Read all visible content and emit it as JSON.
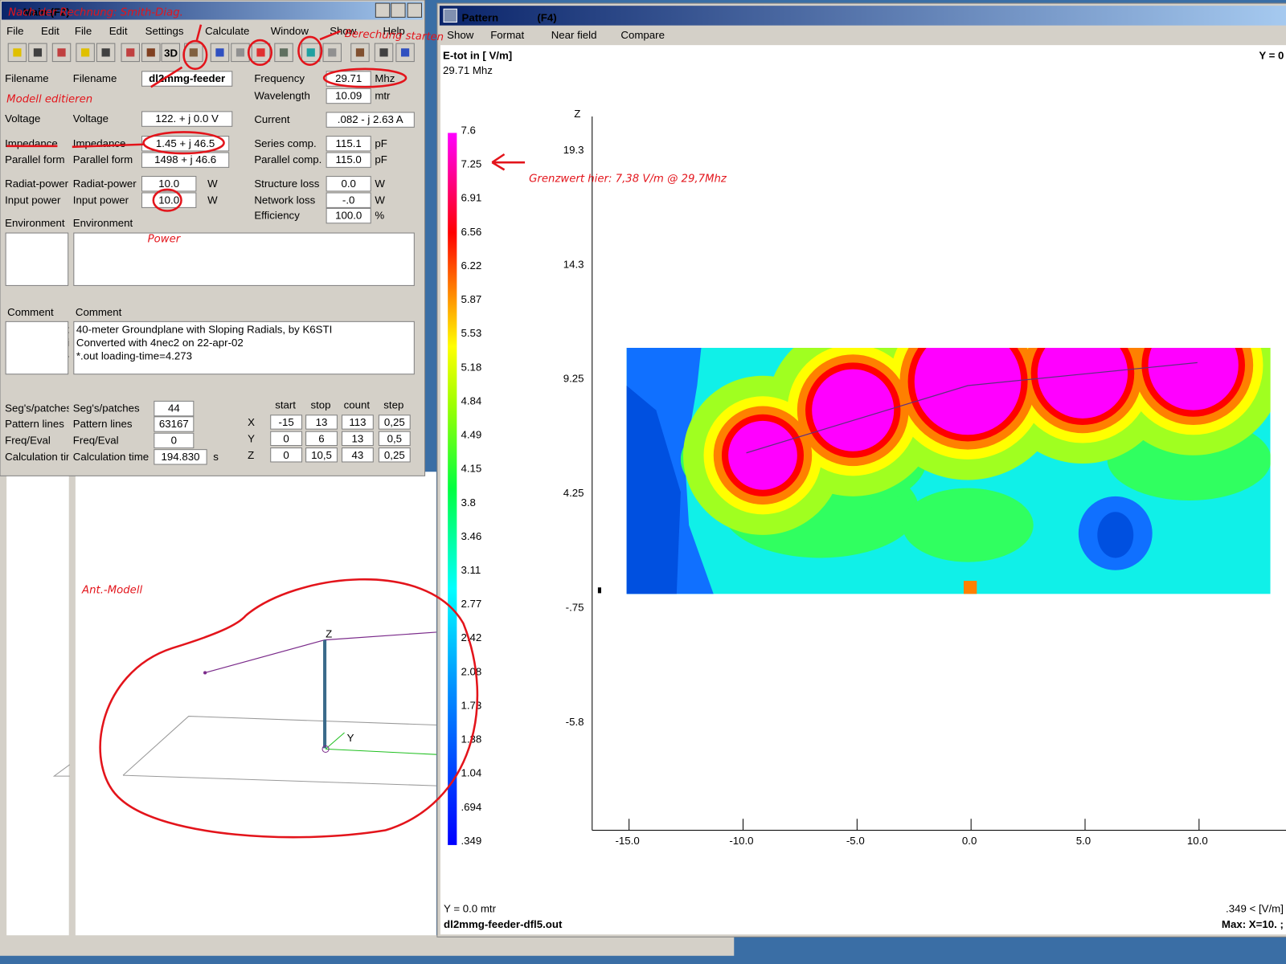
{
  "main_window": {
    "title": "Main (F2)",
    "menu": [
      "File",
      "Edit",
      "File",
      "Edit",
      "Settings",
      "Calculate",
      "Window",
      "Show",
      "Help"
    ],
    "toolbar_3d": "3D",
    "left_fields": [
      {
        "label": "Filename",
        "value": "dl2mmg-feeder"
      },
      {
        "label": "Voltage",
        "value": "122. + j 0.0 V"
      },
      {
        "label": "Impedance",
        "value": "1.45 + j 46.5"
      },
      {
        "label": "Parallel form",
        "value": "1498 + j 46.6"
      },
      {
        "label": "Radiat-power",
        "value": "10.0",
        "unit": "W"
      },
      {
        "label": "Input power",
        "value": "10.0",
        "unit": "W"
      }
    ],
    "right_fields": [
      {
        "label": "Frequency",
        "value": "29.71",
        "unit": "Mhz"
      },
      {
        "label": "Wavelength",
        "value": "10.09",
        "unit": "mtr"
      },
      {
        "label": "Current",
        "value": ".082 - j 2.63 A"
      },
      {
        "label": "Series comp.",
        "value": "115.1",
        "unit": "pF"
      },
      {
        "label": "Parallel comp.",
        "value": "115.0",
        "unit": "pF"
      },
      {
        "label": "Structure loss",
        "value": "0.0",
        "unit": "W"
      },
      {
        "label": "Network loss",
        "value": "-.0",
        "unit": "W"
      },
      {
        "label": "Efficiency",
        "value": "100.0",
        "unit": "%"
      }
    ],
    "environment_label": "Environment",
    "comment_label": "Comment",
    "comment_lines": [
      "40-meter Groundplane with Sloping Radials, by K6STI",
      "Converted with 4nec2 on 22-apr-02",
      "*.out loading-time=4.273"
    ],
    "bottom_fields": [
      {
        "label": "Seg's/patches",
        "value": "44"
      },
      {
        "label": "Pattern lines",
        "value": "63167"
      },
      {
        "label": "Freq/Eval",
        "value": "0"
      },
      {
        "label": "Calculation time",
        "value": "194.830",
        "unit": "s"
      }
    ],
    "grid_headers": [
      "start",
      "stop",
      "count",
      "step"
    ],
    "grid_rows": [
      {
        "axis": "X",
        "cells": [
          "-15",
          "13",
          "113",
          "0,25"
        ]
      },
      {
        "axis": "Y",
        "cells": [
          "0",
          "6",
          "13",
          "0,5"
        ]
      },
      {
        "axis": "Z",
        "cells": [
          "0",
          "10,5",
          "43",
          "0,25"
        ]
      }
    ]
  },
  "model_view": {
    "z_label": "Z",
    "y_label": "Y"
  },
  "pattern_window": {
    "title": "Pattern",
    "hotkey": "(F4)",
    "menu": [
      "Show",
      "Format",
      "Near field",
      "Compare"
    ],
    "quantity": "E-tot in [ V/m]",
    "frequency": "29.71 Mhz",
    "plane_short": "Y = 0",
    "colorbar_labels": [
      "7.6",
      "7.25",
      "6.91",
      "6.56",
      "6.22",
      "5.87",
      "5.53",
      "5.18",
      "4.84",
      "4.49",
      "4.15",
      "3.8",
      "3.46",
      "3.11",
      "2.77",
      "2.42",
      "2.08",
      "1.73",
      "1.38",
      "1.04",
      ".694",
      ".349"
    ],
    "z_axis_label": "Z",
    "z_ticks": [
      "19.3",
      "14.3",
      "9.25",
      "4.25",
      "-.75",
      "-5.8"
    ],
    "x_ticks": [
      "-15.0",
      "-10.0",
      "-5.0",
      "0.0",
      "5.0",
      "10.0"
    ],
    "plane": "Y = 0.0 mtr",
    "file": "dl2mmg-feeder-dfl5.out",
    "min": ".349 < [V/m]",
    "max": "Max: X=10. ;"
  },
  "annotations": {
    "smith": "Nach der Rechnung: Smith-Diag.",
    "start": "Berechung starten",
    "edit": "Modell editieren",
    "power": "Power",
    "limit": "Grenzwert hier: 7,38 V/m @ 29,7Mhz",
    "model": "Ant.-Modell"
  }
}
